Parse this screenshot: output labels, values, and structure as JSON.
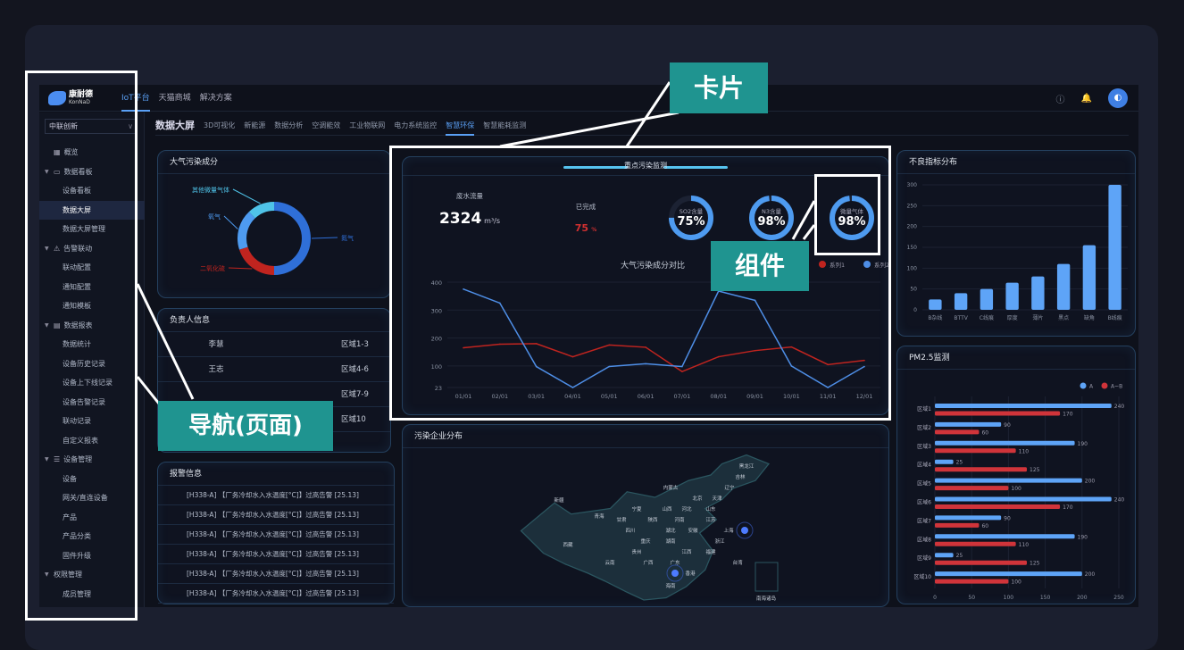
{
  "topbar": {
    "logo_cn": "康耐德",
    "logo_en": "KonNaD",
    "nav": [
      "IoT平台",
      "天猫商城",
      "解决方案"
    ],
    "active": 0,
    "icons": [
      "help-icon",
      "bell-icon"
    ],
    "avatar_icon": "user-avatar"
  },
  "sidebar": {
    "org_select": "中联创新",
    "items": [
      {
        "label": "概览",
        "type": "group",
        "icon": "grid-icon"
      },
      {
        "label": "数据看板",
        "type": "group",
        "icon": "monitor-icon",
        "caret": true
      },
      {
        "label": "设备看板",
        "type": "sub"
      },
      {
        "label": "数据大屏",
        "type": "sub",
        "active": true
      },
      {
        "label": "数据大屏管理",
        "type": "sub"
      },
      {
        "label": "告警联动",
        "type": "group",
        "icon": "warning-icon",
        "caret": true
      },
      {
        "label": "联动配置",
        "type": "sub"
      },
      {
        "label": "通知配置",
        "type": "sub"
      },
      {
        "label": "通知模板",
        "type": "sub"
      },
      {
        "label": "数据报表",
        "type": "group",
        "icon": "report-icon",
        "caret": true
      },
      {
        "label": "数据统计",
        "type": "sub"
      },
      {
        "label": "设备历史记录",
        "type": "sub"
      },
      {
        "label": "设备上下线记录",
        "type": "sub"
      },
      {
        "label": "设备告警记录",
        "type": "sub"
      },
      {
        "label": "联动记录",
        "type": "sub"
      },
      {
        "label": "自定义报表",
        "type": "sub"
      },
      {
        "label": "设备管理",
        "type": "group",
        "icon": "server-icon",
        "caret": true
      },
      {
        "label": "设备",
        "type": "sub"
      },
      {
        "label": "网关/直连设备",
        "type": "sub"
      },
      {
        "label": "产品",
        "type": "sub"
      },
      {
        "label": "产品分类",
        "type": "sub"
      },
      {
        "label": "固件升级",
        "type": "sub"
      },
      {
        "label": "权限管理",
        "type": "group",
        "caret": true
      },
      {
        "label": "成员管理",
        "type": "sub"
      }
    ]
  },
  "subnav": {
    "items": [
      "数据大屏",
      "3D可视化",
      "新能源",
      "数据分析",
      "空调能效",
      "工业物联网",
      "电力系统监控",
      "智慧环保",
      "智慧能耗监测"
    ],
    "active": 7
  },
  "air_panel": {
    "title": "大气污染成分",
    "slices": [
      {
        "name": "氮气",
        "value": 50,
        "color": "#2f6fd8"
      },
      {
        "name": "二氧化硫",
        "value": 20,
        "color": "#c0241f"
      },
      {
        "name": "氧气",
        "value": 18,
        "color": "#4e9bf0"
      },
      {
        "name": "其他微量气体",
        "value": 12,
        "color": "#4fc3e8"
      }
    ]
  },
  "owner_panel": {
    "title": "负责人信息",
    "rows": [
      [
        "李慧",
        "区域1-3"
      ],
      [
        "王志",
        "区域4-6"
      ],
      [
        "",
        "区域7-9"
      ],
      [
        "",
        "区域10"
      ]
    ]
  },
  "alarm_panel": {
    "title": "报警信息",
    "rows": [
      "[H338-A] 【厂务冷却水入水温度[°C]】过高告警 [25.13]",
      "[H338-A] 【厂务冷却水入水温度[°C]】过高告警 [25.13]",
      "[H338-A] 【厂务冷却水入水温度[°C]】过高告警 [25.13]",
      "[H338-A] 【厂务冷却水入水温度[°C]】过高告警 [25.13]",
      "[H338-A] 【厂务冷却水入水温度[°C]】过高告警 [25.13]",
      "[H338-A] 【厂务冷却水入水温度[°C]】过高告警 [25.13]"
    ]
  },
  "monitor": {
    "title": "重点污染监测",
    "flow_label": "废水流量",
    "flow_value": "2324",
    "flow_unit": "m³/s",
    "done_label": "已完成",
    "done_value": "75",
    "done_unit": "%",
    "gauges": [
      {
        "label": "SO2含量",
        "value": 75,
        "text": "75%"
      },
      {
        "label": "N3含量",
        "value": 98,
        "text": "98%"
      },
      {
        "label": "微量气体",
        "value": 98,
        "text": "98%"
      }
    ],
    "accent": "#4e9bf0"
  },
  "chart_data": [
    {
      "type": "line",
      "title": "大气污染成分对比",
      "x": [
        "01/01",
        "02/01",
        "03/01",
        "04/01",
        "05/01",
        "06/01",
        "07/01",
        "08/01",
        "09/01",
        "10/01",
        "11/01",
        "12/01"
      ],
      "yticks": [
        23,
        100,
        200,
        300,
        400
      ],
      "ylim": [
        23,
        400
      ],
      "legend": "top-right",
      "series": [
        {
          "name": "系列1",
          "color": "#c0241f",
          "values": [
            165,
            178,
            180,
            133,
            175,
            167,
            80,
            133,
            155,
            168,
            105,
            120
          ]
        },
        {
          "name": "系列2",
          "color": "#4e8ee6",
          "values": [
            375,
            325,
            98,
            23,
            98,
            108,
            98,
            368,
            335,
            100,
            23,
            98
          ]
        }
      ]
    },
    {
      "type": "bar",
      "title": "不良指标分布",
      "categories": [
        "B杂线",
        "BTTV",
        "C线痕",
        "厚度",
        "薄片",
        "黑点",
        "缺角",
        "B线痕"
      ],
      "values": [
        25,
        40,
        50,
        65,
        80,
        110,
        155,
        300
      ],
      "ylim": [
        0,
        300
      ],
      "yticks": [
        0,
        50,
        100,
        150,
        200,
        250,
        300
      ],
      "color": "#5ea4f7"
    },
    {
      "type": "bar",
      "orientation": "horizontal",
      "title": "PM2.5监测",
      "categories": [
        "区域1",
        "区域2",
        "区域3",
        "区域4",
        "区域5",
        "区域6",
        "区域7",
        "区域8",
        "区域9",
        "区域10"
      ],
      "xlim": [
        0,
        250
      ],
      "xticks": [
        0,
        50,
        100,
        150,
        200,
        250
      ],
      "legend": "top-right",
      "series": [
        {
          "name": "A",
          "color": "#5ea4f7",
          "values": [
            240,
            90,
            190,
            25,
            200,
            240,
            90,
            190,
            25,
            200
          ]
        },
        {
          "name": "A~B",
          "color": "#d0343a",
          "values": [
            170,
            60,
            110,
            125,
            100,
            170,
            60,
            110,
            125,
            100
          ]
        }
      ]
    }
  ],
  "map_panel": {
    "title": "污染企业分布",
    "labels": [
      "黑龙江",
      "吉林",
      "辽宁",
      "内蒙古",
      "北京",
      "天津",
      "河北",
      "山西",
      "山东",
      "宁夏",
      "甘肃",
      "陕西",
      "河南",
      "江苏",
      "上海",
      "安徽",
      "湖北",
      "浙江",
      "四川",
      "重庆",
      "湖南",
      "江西",
      "福建",
      "贵州",
      "云南",
      "广西",
      "广东",
      "台湾",
      "香港",
      "海南",
      "新疆",
      "青海",
      "西藏",
      "南海诸岛"
    ]
  },
  "annotations": {
    "card": "卡片",
    "component": "组件",
    "nav": "导航(页面)"
  }
}
